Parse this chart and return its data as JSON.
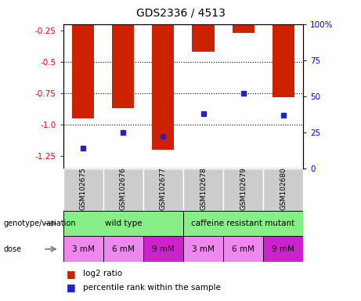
{
  "title": "GDS2336 / 4513",
  "samples": [
    "GSM102675",
    "GSM102676",
    "GSM102677",
    "GSM102678",
    "GSM102679",
    "GSM102680"
  ],
  "log2_ratio": [
    -0.95,
    -0.87,
    -1.2,
    -0.42,
    -0.27,
    -0.78
  ],
  "percentile_rank": [
    14,
    25,
    22,
    38,
    52,
    37
  ],
  "bar_color": "#cc2200",
  "dot_color": "#2222cc",
  "ylim_left": [
    -1.35,
    -0.2
  ],
  "ylim_right": [
    0,
    100
  ],
  "yticks_left": [
    -1.25,
    -1.0,
    -0.75,
    -0.5,
    -0.25
  ],
  "yticks_right": [
    0,
    25,
    50,
    75,
    100
  ],
  "ytick_labels_right": [
    "0",
    "25",
    "50",
    "75",
    "100%"
  ],
  "gridlines": [
    -0.5,
    -0.75,
    -1.0
  ],
  "dose_labels": [
    "3 mM",
    "6 mM",
    "9 mM",
    "3 mM",
    "6 mM",
    "9 mM"
  ],
  "dose_colors": [
    "#ee88ee",
    "#ee88ee",
    "#cc22cc",
    "#ee88ee",
    "#ee88ee",
    "#cc22cc"
  ],
  "genotype_color": "#88ee88",
  "sample_bg_color": "#cccccc",
  "legend_red": "log2 ratio",
  "legend_blue": "percentile rank within the sample",
  "bar_width": 0.55,
  "background_color": "#ffffff"
}
